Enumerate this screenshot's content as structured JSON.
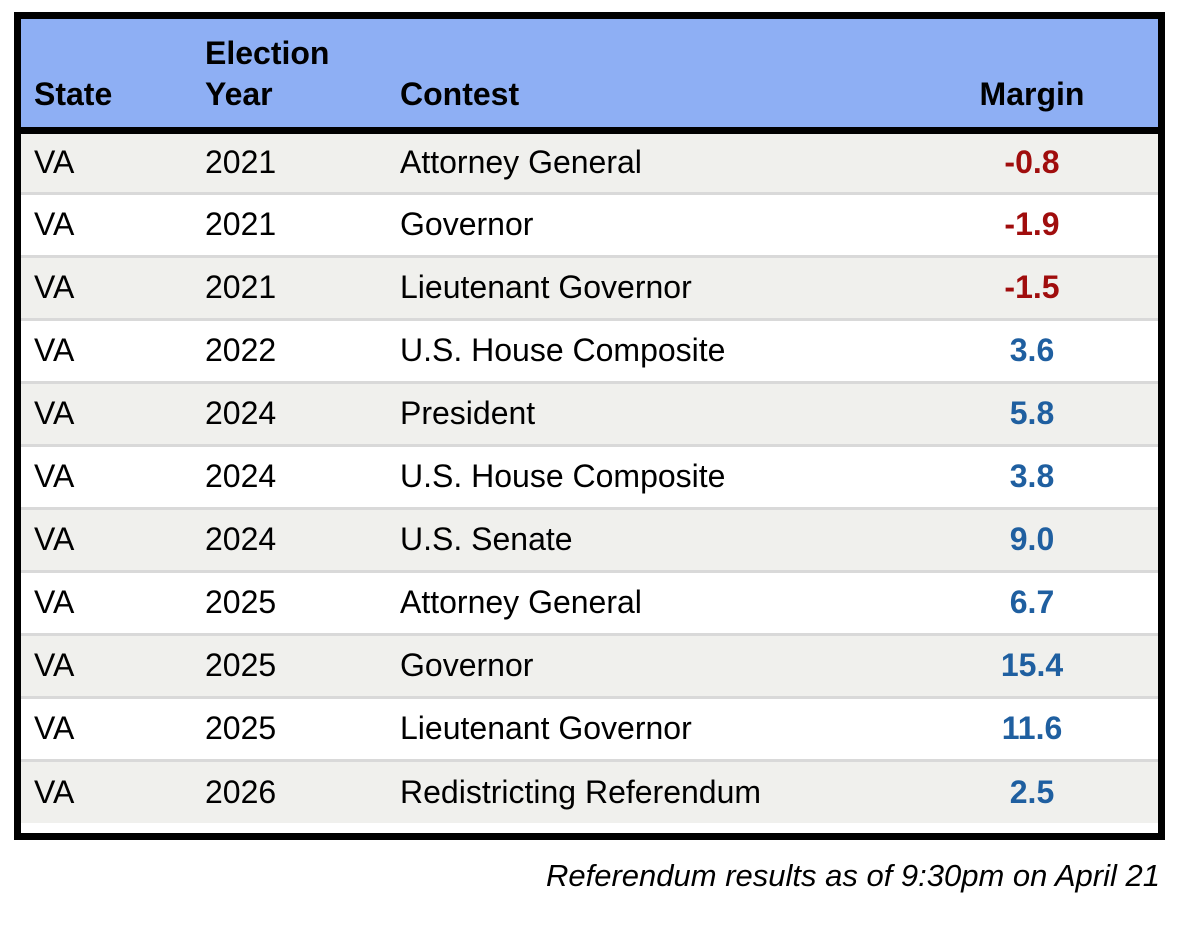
{
  "table": {
    "headers": [
      {
        "lines": [
          "State"
        ]
      },
      {
        "lines": [
          "Election",
          "Year"
        ]
      },
      {
        "lines": [
          "Contest"
        ]
      },
      {
        "lines": [
          "Margin"
        ]
      }
    ],
    "rows": [
      {
        "state": "VA",
        "year": "2021",
        "contest": "Attorney General",
        "margin": "-0.8"
      },
      {
        "state": "VA",
        "year": "2021",
        "contest": "Governor",
        "margin": "-1.9"
      },
      {
        "state": "VA",
        "year": "2021",
        "contest": "Lieutenant Governor",
        "margin": "-1.5"
      },
      {
        "state": "VA",
        "year": "2022",
        "contest": "U.S. House Composite",
        "margin": "3.6"
      },
      {
        "state": "VA",
        "year": "2024",
        "contest": "President",
        "margin": "5.8"
      },
      {
        "state": "VA",
        "year": "2024",
        "contest": "U.S. House Composite",
        "margin": "3.8"
      },
      {
        "state": "VA",
        "year": "2024",
        "contest": "U.S. Senate",
        "margin": "9.0"
      },
      {
        "state": "VA",
        "year": "2025",
        "contest": "Attorney General",
        "margin": "6.7"
      },
      {
        "state": "VA",
        "year": "2025",
        "contest": "Governor",
        "margin": "15.4"
      },
      {
        "state": "VA",
        "year": "2025",
        "contest": "Lieutenant Governor",
        "margin": "11.6"
      },
      {
        "state": "VA",
        "year": "2026",
        "contest": "Redistricting Referendum",
        "margin": "2.5"
      }
    ]
  },
  "footer": {
    "note": "Referendum results as of 9:30pm on April 21"
  },
  "colors": {
    "header_bg": "#8EAFF4",
    "row_alt_bg": "#F0F0ED",
    "row_bg": "#FFFFFF",
    "border": "#000000",
    "separator": "#D9D9D9",
    "margin_negative": "#A00D0D",
    "margin_positive": "#1F5FA0"
  }
}
